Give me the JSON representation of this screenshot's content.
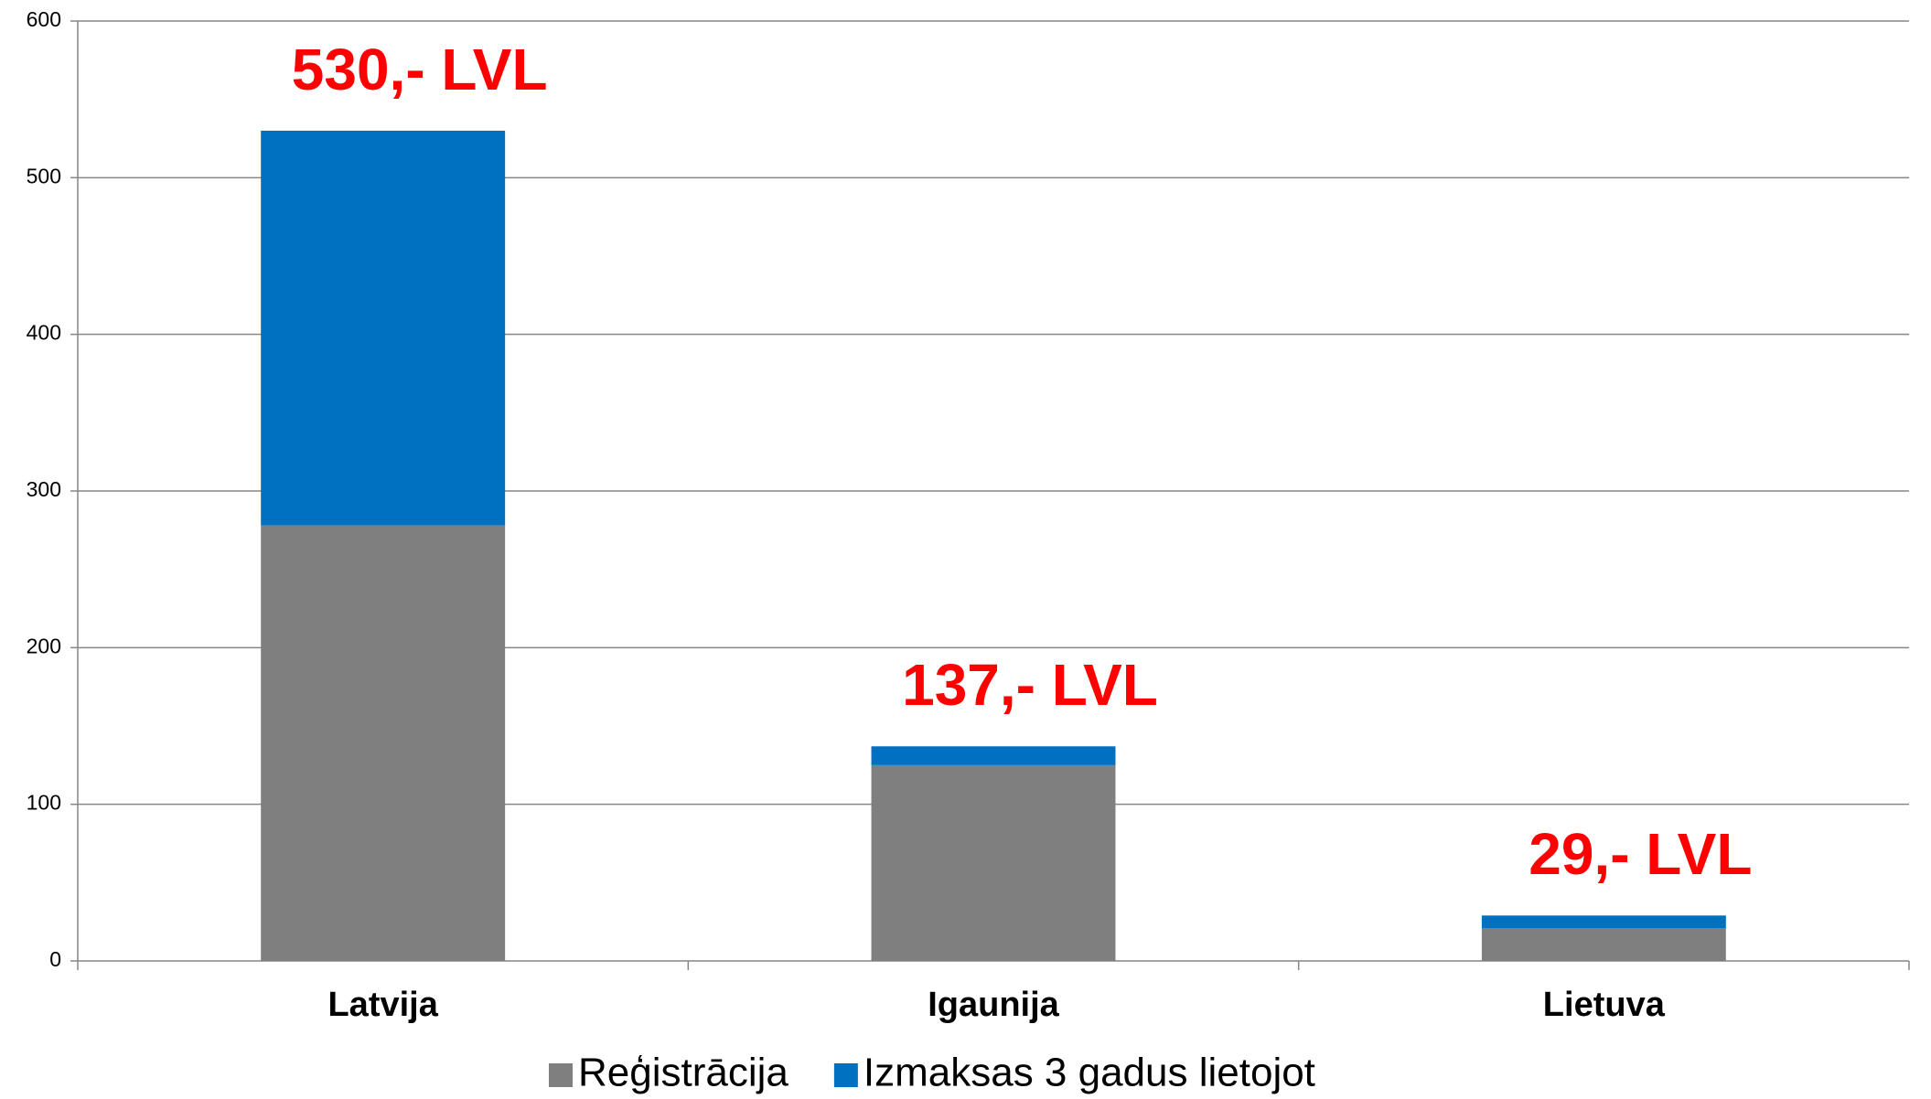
{
  "chart_data": {
    "type": "stacked_bar",
    "categories": [
      "Latvija",
      "Igaunija",
      "Lietuva"
    ],
    "series": [
      {
        "name": "Reģistrācija",
        "color": "#7f7f7f",
        "values": [
          278,
          125,
          21
        ]
      },
      {
        "name": "Izmaksas 3 gadus lietojot",
        "color": "#0070c0",
        "values": [
          252,
          12,
          8
        ]
      }
    ],
    "annotations": [
      "530,- LVL",
      "137,- LVL",
      "29,- LVL"
    ],
    "annotation_color": "#ff0000",
    "ylim": [
      0,
      600
    ],
    "yticks": [
      0,
      100,
      200,
      300,
      400,
      500,
      600
    ],
    "grid": true,
    "legend": "bottom"
  }
}
